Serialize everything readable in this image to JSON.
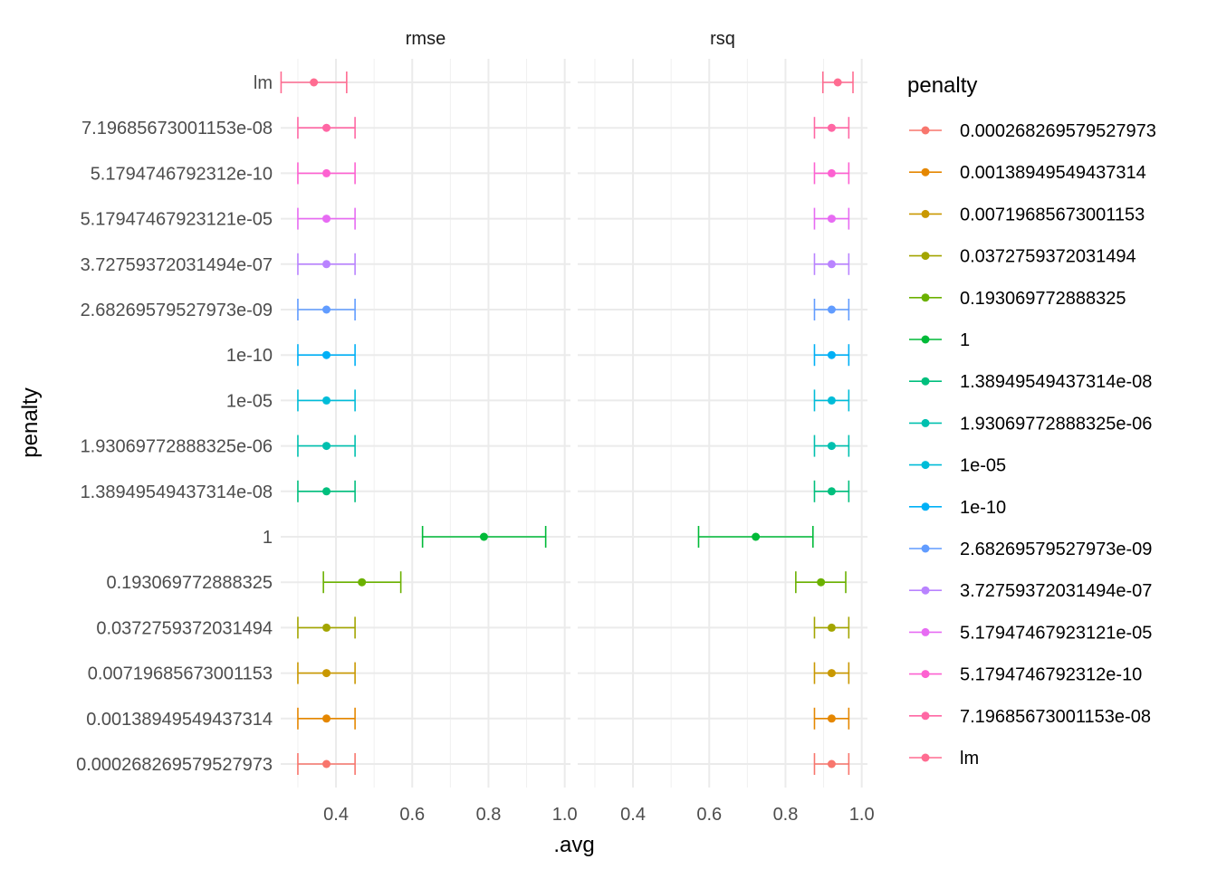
{
  "chart_data": {
    "type": "errorbar",
    "facets": [
      "rmse",
      "rsq"
    ],
    "xlabel": ".avg",
    "ylabel": "penalty",
    "legend_title": "penalty",
    "legend_position": "right",
    "grid": true,
    "x_ticks": [
      "0.4",
      "0.6",
      "0.8",
      "1.0"
    ],
    "x_tick_values": [
      0.4,
      0.6,
      0.8,
      1.0
    ],
    "xlim": [
      0.255,
      1.015
    ],
    "categories_bottom_to_top": [
      "0.000268269579527973",
      "0.00138949549437314",
      "0.00719685673001153",
      "0.0372759372031494",
      "0.193069772888325",
      "1",
      "1.38949549437314e-08",
      "1.93069772888325e-06",
      "1e-05",
      "1e-10",
      "2.68269579527973e-09",
      "3.72759372031494e-07",
      "5.17947467923121e-05",
      "5.1794746792312e-10",
      "7.19685673001153e-08",
      "lm"
    ],
    "colors": [
      "#F8766D",
      "#E58700",
      "#C99800",
      "#A3A500",
      "#6BB100",
      "#00BA38",
      "#00BF7D",
      "#00C0AF",
      "#00BCD8",
      "#00B0F6",
      "#619CFF",
      "#B983FF",
      "#E76BF3",
      "#FD61D1",
      "#FF67A4",
      "#FF6C91"
    ],
    "series": [
      {
        "facet": "rmse",
        "mean": [
          0.375,
          0.375,
          0.375,
          0.375,
          0.468,
          0.788,
          0.375,
          0.375,
          0.375,
          0.375,
          0.375,
          0.375,
          0.375,
          0.375,
          0.375,
          0.342
        ],
        "lower": [
          0.3,
          0.3,
          0.3,
          0.3,
          0.367,
          0.627,
          0.3,
          0.3,
          0.3,
          0.3,
          0.3,
          0.3,
          0.3,
          0.3,
          0.3,
          0.256
        ],
        "upper": [
          0.45,
          0.45,
          0.45,
          0.45,
          0.57,
          0.95,
          0.45,
          0.45,
          0.45,
          0.45,
          0.45,
          0.45,
          0.45,
          0.45,
          0.45,
          0.428
        ]
      },
      {
        "facet": "rsq",
        "mean": [
          0.921,
          0.921,
          0.921,
          0.921,
          0.893,
          0.722,
          0.921,
          0.921,
          0.921,
          0.921,
          0.921,
          0.921,
          0.921,
          0.921,
          0.921,
          0.937
        ],
        "lower": [
          0.876,
          0.876,
          0.876,
          0.876,
          0.827,
          0.572,
          0.876,
          0.876,
          0.876,
          0.876,
          0.876,
          0.876,
          0.876,
          0.876,
          0.876,
          0.898
        ],
        "upper": [
          0.966,
          0.966,
          0.966,
          0.966,
          0.958,
          0.872,
          0.966,
          0.966,
          0.966,
          0.966,
          0.966,
          0.966,
          0.966,
          0.966,
          0.966,
          0.977
        ]
      }
    ]
  }
}
